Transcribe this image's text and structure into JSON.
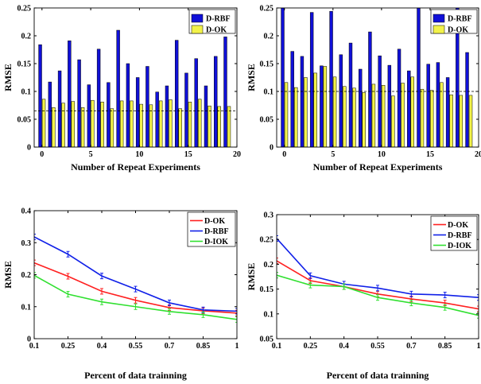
{
  "colors": {
    "rbf": "#1010d8",
    "ok": "#f2f24a",
    "line_ok": "#ff2020",
    "line_rbf": "#1020e8",
    "line_iok": "#30e030",
    "axis": "#000000"
  },
  "chart_data": [
    {
      "type": "bar",
      "title": "",
      "xlabel": "Number of Repeat Experiments",
      "ylabel": "RMSE",
      "xlim": [
        -0.8,
        20
      ],
      "ylim": [
        0,
        0.25
      ],
      "xticks": [
        0,
        5,
        10,
        15,
        20
      ],
      "xtick_labels": [
        "0",
        "5",
        "10",
        "15",
        "20"
      ],
      "yticks": [
        0,
        0.05,
        0.1,
        0.15,
        0.2,
        0.25
      ],
      "ytick_labels": [
        "0",
        "0.05",
        "0.1",
        "0.15",
        "0.2",
        "0.25"
      ],
      "reference_line": 0.065,
      "legend_position": "top-right",
      "x": [
        0,
        1,
        2,
        3,
        4,
        5,
        6,
        7,
        8,
        9,
        10,
        11,
        12,
        13,
        14,
        15,
        16,
        17,
        18,
        19
      ],
      "series": [
        {
          "name": "D-RBF",
          "values": [
            0.184,
            0.117,
            0.137,
            0.191,
            0.157,
            0.112,
            0.176,
            0.116,
            0.21,
            0.15,
            0.125,
            0.145,
            0.099,
            0.11,
            0.192,
            0.133,
            0.159,
            0.11,
            0.163,
            0.198
          ]
        },
        {
          "name": "D-OK",
          "values": [
            0.086,
            0.071,
            0.079,
            0.082,
            0.071,
            0.084,
            0.081,
            0.069,
            0.083,
            0.083,
            0.077,
            0.076,
            0.083,
            0.085,
            0.069,
            0.081,
            0.086,
            0.074,
            0.073,
            0.073
          ]
        }
      ]
    },
    {
      "type": "bar",
      "title": "",
      "xlabel": "Number of Repeat Experiments",
      "ylabel": "RMSE",
      "xlim": [
        -0.8,
        20
      ],
      "ylim": [
        0,
        0.25
      ],
      "xticks": [
        0,
        5,
        10,
        15,
        20
      ],
      "xtick_labels": [
        "0",
        "5",
        "10",
        "15",
        "20"
      ],
      "yticks": [
        0,
        0.05,
        0.1,
        0.15,
        0.2,
        0.25
      ],
      "ytick_labels": [
        "0",
        "0.05",
        "0.1",
        "0.15",
        "0.2",
        "0.25"
      ],
      "reference_line": 0.1,
      "legend_position": "top-right",
      "x": [
        0,
        1,
        2,
        3,
        4,
        5,
        6,
        7,
        8,
        9,
        10,
        11,
        12,
        13,
        14,
        15,
        16,
        17,
        18,
        19
      ],
      "series": [
        {
          "name": "D-RBF",
          "values": [
            0.26,
            0.172,
            0.163,
            0.242,
            0.146,
            0.244,
            0.166,
            0.187,
            0.14,
            0.207,
            0.164,
            0.147,
            0.176,
            0.137,
            0.27,
            0.149,
            0.152,
            0.125,
            0.26,
            0.17
          ]
        },
        {
          "name": "D-OK",
          "values": [
            0.116,
            0.107,
            0.125,
            0.133,
            0.145,
            0.126,
            0.109,
            0.106,
            0.098,
            0.113,
            0.111,
            0.092,
            0.115,
            0.126,
            0.104,
            0.102,
            0.116,
            0.094,
            0.093,
            0.093
          ]
        }
      ]
    },
    {
      "type": "line",
      "title": "",
      "xlabel": "Percent of data trainning",
      "ylabel": "RMSE",
      "xlim": [
        0.1,
        1
      ],
      "ylim": [
        0,
        0.4
      ],
      "xticks": [
        0.1,
        0.25,
        0.4,
        0.55,
        0.7,
        0.85,
        1
      ],
      "xtick_labels": [
        "0.1",
        "0.25",
        "0.4",
        "0.55",
        "0.7",
        "0.85",
        "1"
      ],
      "yticks": [
        0,
        0.1,
        0.2,
        0.3,
        0.4
      ],
      "ytick_labels": [
        "0",
        "0.1",
        "0.2",
        "0.3",
        "0.4"
      ],
      "legend_position": "top-right",
      "x": [
        0.1,
        0.25,
        0.4,
        0.55,
        0.7,
        0.85,
        1
      ],
      "series": [
        {
          "name": "D-OK",
          "values": [
            0.237,
            0.195,
            0.148,
            0.12,
            0.097,
            0.087,
            0.08
          ]
        },
        {
          "name": "D-RBF",
          "values": [
            0.318,
            0.264,
            0.196,
            0.155,
            0.112,
            0.09,
            0.086
          ]
        },
        {
          "name": "D-IOK",
          "values": [
            0.198,
            0.139,
            0.115,
            0.1,
            0.085,
            0.075,
            0.06
          ]
        }
      ]
    },
    {
      "type": "line",
      "title": "",
      "xlabel": "Percent of data trainning",
      "ylabel": "RMSE",
      "xlim": [
        0.1,
        1
      ],
      "ylim": [
        0.05,
        0.3
      ],
      "xticks": [
        0.1,
        0.25,
        0.4,
        0.55,
        0.7,
        0.85,
        1
      ],
      "xtick_labels": [
        "0.1",
        "0.25",
        "0.4",
        "0.55",
        "0.7",
        "0.85",
        "1"
      ],
      "yticks": [
        0.05,
        0.1,
        0.15,
        0.2,
        0.25,
        0.3
      ],
      "ytick_labels": [
        "0.05",
        "0.1",
        "0.15",
        "0.2",
        "0.25",
        "0.3"
      ],
      "legend_position": "top-right",
      "x": [
        0.1,
        0.25,
        0.4,
        0.55,
        0.7,
        0.85,
        1
      ],
      "series": [
        {
          "name": "D-OK",
          "values": [
            0.207,
            0.167,
            0.155,
            0.14,
            0.13,
            0.122,
            0.11
          ]
        },
        {
          "name": "D-RBF",
          "values": [
            0.252,
            0.177,
            0.16,
            0.152,
            0.14,
            0.138,
            0.133
          ]
        },
        {
          "name": "D-IOK",
          "values": [
            0.178,
            0.158,
            0.155,
            0.133,
            0.122,
            0.113,
            0.097
          ]
        }
      ]
    }
  ]
}
